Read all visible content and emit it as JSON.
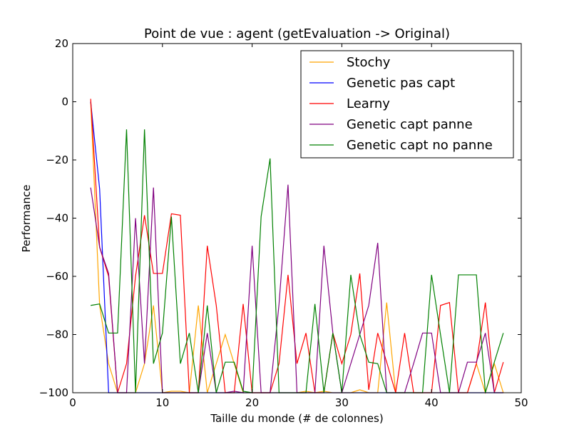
{
  "chart_data": {
    "type": "line",
    "title": "Point de vue : agent (getEvaluation -> Original)",
    "xlabel": "Taille du monde (# de colonnes)",
    "ylabel": "Performance",
    "xlim": [
      0,
      50
    ],
    "ylim": [
      -100,
      20
    ],
    "xticks": [
      0,
      10,
      20,
      30,
      40,
      50
    ],
    "yticks": [
      -100,
      -80,
      -60,
      -40,
      -20,
      0,
      20
    ],
    "ytick_labels": [
      "−100",
      "−80",
      "−60",
      "−40",
      "−20",
      "0",
      "20"
    ],
    "grid": false,
    "legend_position": "top-right",
    "x": [
      2,
      3,
      4,
      5,
      6,
      7,
      8,
      9,
      10,
      11,
      12,
      13,
      14,
      15,
      16,
      17,
      18,
      19,
      20,
      21,
      22,
      23,
      24,
      25,
      26,
      27,
      28,
      29,
      30,
      31,
      32,
      33,
      34,
      35,
      36,
      37,
      38,
      39,
      40,
      41,
      42,
      43,
      44,
      45,
      46,
      47,
      48
    ],
    "series": [
      {
        "name": "Stochy",
        "color": "#ffa500",
        "values": [
          0,
          -70,
          -90,
          -100,
          -100,
          -100,
          -90,
          -70,
          -100,
          -99.5,
          -99.5,
          -100,
          -70,
          -100,
          -90,
          -80,
          -90,
          -100,
          -100,
          -100,
          -100,
          -100,
          -100,
          -100,
          -99.5,
          -100,
          -99.5,
          -100,
          -100,
          -100,
          -99,
          -100,
          -100,
          -69,
          -100,
          -100,
          -100,
          -100,
          -100,
          -100,
          -100,
          -100,
          -100,
          -90,
          -100,
          -90,
          -100
        ]
      },
      {
        "name": "Genetic pas capt",
        "color": "#0000ff",
        "values": [
          0,
          -30,
          -100,
          -100,
          -100,
          -100,
          -100,
          -100,
          -100,
          -100,
          -100,
          -100,
          -100,
          -100,
          -100,
          -100,
          -100,
          -100,
          -100,
          -100,
          -100,
          -100,
          -100,
          -100,
          -100,
          -100,
          -100,
          -100,
          -100,
          -100,
          -100,
          -100,
          -100,
          -100,
          -100,
          -100,
          -100,
          -100,
          -100,
          -100,
          -100,
          -100,
          -100,
          -100,
          -100,
          -100,
          -100
        ]
      },
      {
        "name": "Learny",
        "color": "#ff0000",
        "values": [
          1,
          -50,
          -60,
          -100,
          -90,
          -60,
          -39,
          -59,
          -59,
          -38.5,
          -39,
          -100,
          -100,
          -49.5,
          -70,
          -100,
          -100,
          -69.5,
          -100,
          -100,
          -100,
          -90,
          -59.5,
          -90,
          -79.5,
          -100,
          -100,
          -79.5,
          -90,
          -80,
          -59,
          -99,
          -79.5,
          -89.5,
          -100,
          -79.5,
          -100,
          -100,
          -100,
          -70,
          -69,
          -100,
          -100,
          -90,
          -69,
          -100,
          -89.5
        ]
      },
      {
        "name": "Genetic capt panne",
        "color": "#800080",
        "values": [
          -29.5,
          -50,
          -59,
          -100,
          -100,
          -40,
          -90,
          -29.5,
          -100,
          -100,
          -100,
          -100,
          -100,
          -79.5,
          -100,
          -100,
          -99.5,
          -100,
          -49.5,
          -100,
          -100,
          -69.5,
          -28.5,
          -100,
          -100,
          -100,
          -49.5,
          -79.5,
          -100,
          -90,
          -80,
          -70,
          -48.5,
          -100,
          -100,
          -100,
          -90,
          -79.5,
          -79.5,
          -100,
          -100,
          -100,
          -89.5,
          -89.5,
          -79.5,
          -100,
          -100
        ]
      },
      {
        "name": "Genetic capt no panne",
        "color": "#008000",
        "values": [
          -70,
          -69.5,
          -79.5,
          -79.5,
          -9.5,
          -100,
          -9.5,
          -90,
          -79.5,
          -39.5,
          -90,
          -79.5,
          -100,
          -70,
          -100,
          -89.5,
          -89.5,
          -99.5,
          -100,
          -39.5,
          -19.5,
          -100,
          -100,
          -100,
          -100,
          -69.5,
          -100,
          -79.5,
          -100,
          -59.5,
          -80,
          -89.5,
          -90,
          -100,
          -100,
          -100,
          -100,
          -100,
          -59.5,
          -80,
          -100,
          -59.5,
          -59.5,
          -59.5,
          -100,
          -89.5,
          -79.5
        ]
      }
    ]
  }
}
